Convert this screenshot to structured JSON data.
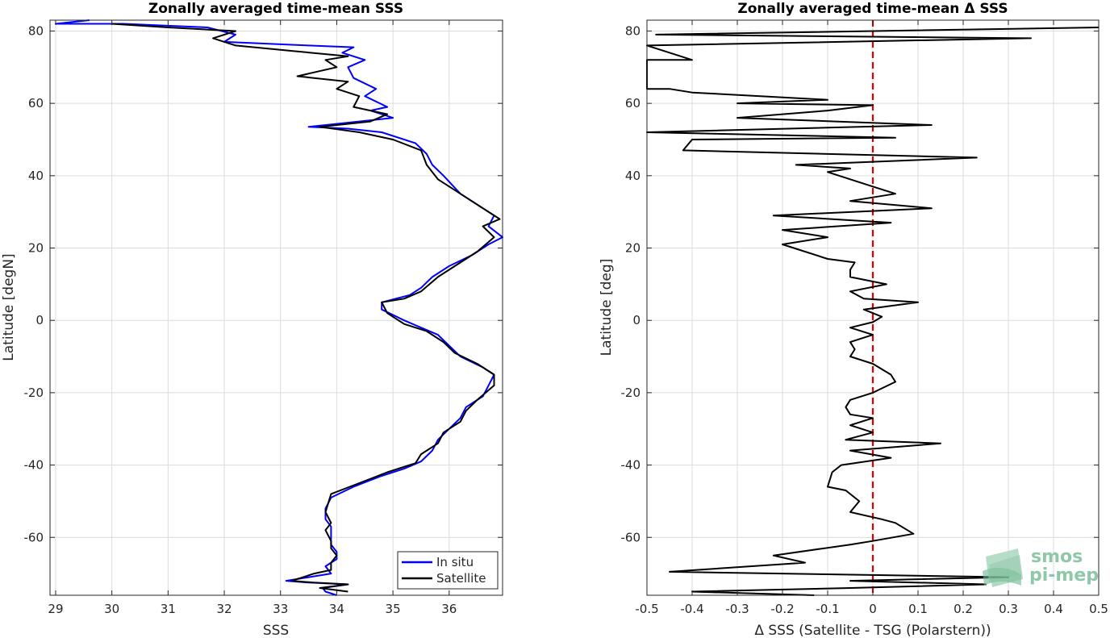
{
  "chart_data": [
    {
      "type": "line",
      "title": "Zonally averaged time-mean SSS",
      "xlabel": "SSS",
      "ylabel": "Latitude [degN]",
      "xlim": [
        28.9,
        36.95
      ],
      "ylim": [
        -76,
        83
      ],
      "xticks": [
        29,
        30,
        31,
        32,
        33,
        34,
        35,
        36
      ],
      "yticks": [
        -60,
        -40,
        -20,
        0,
        20,
        40,
        60,
        80
      ],
      "grid": true,
      "legend": {
        "position": "bottom-right",
        "entries": [
          "In situ",
          "Satellite"
        ]
      },
      "series": [
        {
          "name": "In situ",
          "color": "#0000ff",
          "points": [
            [
              34.0,
              -76
            ],
            [
              33.8,
              -75
            ],
            [
              33.75,
              -74
            ],
            [
              34.2,
              -73
            ],
            [
              33.5,
              -72.5
            ],
            [
              33.1,
              -72
            ],
            [
              33.5,
              -71
            ],
            [
              33.9,
              -70
            ],
            [
              33.8,
              -68
            ],
            [
              33.9,
              -67
            ],
            [
              34.0,
              -66
            ],
            [
              34.0,
              -64
            ],
            [
              33.9,
              -62
            ],
            [
              33.9,
              -60
            ],
            [
              33.9,
              -57
            ],
            [
              33.8,
              -55
            ],
            [
              33.8,
              -52
            ],
            [
              33.9,
              -49
            ],
            [
              34.3,
              -46
            ],
            [
              34.8,
              -43
            ],
            [
              35.2,
              -41
            ],
            [
              35.5,
              -39
            ],
            [
              35.7,
              -36
            ],
            [
              35.8,
              -33
            ],
            [
              36.0,
              -30
            ],
            [
              36.2,
              -27
            ],
            [
              36.3,
              -24
            ],
            [
              36.6,
              -21
            ],
            [
              36.7,
              -18
            ],
            [
              36.8,
              -15
            ],
            [
              36.6,
              -13
            ],
            [
              36.2,
              -10
            ],
            [
              36.0,
              -7
            ],
            [
              35.8,
              -4
            ],
            [
              35.5,
              -2
            ],
            [
              35.2,
              0
            ],
            [
              34.8,
              3
            ],
            [
              34.8,
              5
            ],
            [
              35.3,
              7
            ],
            [
              35.5,
              9
            ],
            [
              35.7,
              12
            ],
            [
              36.0,
              15
            ],
            [
              36.4,
              18
            ],
            [
              36.7,
              21
            ],
            [
              36.95,
              23
            ],
            [
              36.7,
              26
            ],
            [
              36.8,
              29
            ],
            [
              36.6,
              31
            ],
            [
              36.2,
              35
            ],
            [
              35.9,
              40
            ],
            [
              35.7,
              43
            ],
            [
              35.6,
              46
            ],
            [
              35.4,
              49
            ],
            [
              34.8,
              52
            ],
            [
              34.2,
              53
            ],
            [
              33.5,
              53.5
            ],
            [
              34.4,
              55
            ],
            [
              35.0,
              56
            ],
            [
              34.6,
              58
            ],
            [
              34.9,
              59
            ],
            [
              34.5,
              62
            ],
            [
              34.7,
              64
            ],
            [
              34.3,
              67
            ],
            [
              34.2,
              70
            ],
            [
              34.5,
              72
            ],
            [
              34.1,
              74
            ],
            [
              34.3,
              75.5
            ],
            [
              33.5,
              76
            ],
            [
              32.0,
              77
            ],
            [
              32.2,
              79
            ],
            [
              31.7,
              81
            ],
            [
              30.2,
              82
            ],
            [
              29.0,
              82
            ],
            [
              29.6,
              83
            ]
          ]
        },
        {
          "name": "Satellite",
          "color": "#000000",
          "points": [
            [
              34.2,
              -75
            ],
            [
              33.7,
              -74
            ],
            [
              34.2,
              -73
            ],
            [
              33.6,
              -72.5
            ],
            [
              33.2,
              -72
            ],
            [
              33.6,
              -70
            ],
            [
              33.9,
              -69
            ],
            [
              33.9,
              -67
            ],
            [
              34.0,
              -65
            ],
            [
              33.9,
              -63
            ],
            [
              33.9,
              -61
            ],
            [
              33.8,
              -58
            ],
            [
              33.9,
              -56
            ],
            [
              33.8,
              -53
            ],
            [
              33.9,
              -48
            ],
            [
              34.4,
              -45
            ],
            [
              34.9,
              -42
            ],
            [
              35.4,
              -39.5
            ],
            [
              35.5,
              -37
            ],
            [
              35.8,
              -34
            ],
            [
              35.9,
              -31
            ],
            [
              36.2,
              -28
            ],
            [
              36.3,
              -25
            ],
            [
              36.5,
              -22
            ],
            [
              36.8,
              -18
            ],
            [
              36.8,
              -15
            ],
            [
              36.5,
              -12
            ],
            [
              36.1,
              -9
            ],
            [
              35.9,
              -6
            ],
            [
              35.6,
              -3
            ],
            [
              35.2,
              -1
            ],
            [
              34.9,
              2
            ],
            [
              34.8,
              5
            ],
            [
              35.2,
              6
            ],
            [
              35.5,
              8
            ],
            [
              35.8,
              12
            ],
            [
              36.1,
              15
            ],
            [
              36.5,
              19
            ],
            [
              36.8,
              23
            ],
            [
              36.6,
              26
            ],
            [
              36.9,
              28
            ],
            [
              36.5,
              32
            ],
            [
              36.2,
              35
            ],
            [
              35.8,
              39
            ],
            [
              35.6,
              43
            ],
            [
              35.5,
              47
            ],
            [
              35.0,
              50
            ],
            [
              34.4,
              52
            ],
            [
              33.7,
              53.5
            ],
            [
              34.6,
              55
            ],
            [
              34.9,
              57
            ],
            [
              34.3,
              59
            ],
            [
              34.4,
              62
            ],
            [
              34.0,
              64
            ],
            [
              34.2,
              66
            ],
            [
              33.3,
              67.5
            ],
            [
              34.0,
              70
            ],
            [
              33.8,
              72
            ],
            [
              34.2,
              73
            ],
            [
              33.2,
              74.5
            ],
            [
              32.2,
              76
            ],
            [
              31.8,
              78
            ],
            [
              32.2,
              80
            ],
            [
              31.0,
              81
            ],
            [
              30.0,
              82
            ]
          ]
        }
      ]
    },
    {
      "type": "line",
      "title": "Zonally averaged time-mean Δ SSS",
      "xlabel": "Δ SSS (Satellite - TSG (Polarstern))",
      "ylabel": "Latitude [deg]",
      "xlim": [
        -0.5,
        0.5
      ],
      "ylim": [
        -76,
        83
      ],
      "xticks": [
        -0.5,
        -0.4,
        -0.3,
        -0.2,
        -0.1,
        0,
        0.1,
        0.2,
        0.3,
        0.4,
        0.5
      ],
      "yticks": [
        -60,
        -40,
        -20,
        0,
        20,
        40,
        60,
        80
      ],
      "grid": true,
      "reference_line": {
        "x": 0,
        "color": "#e00000",
        "style": "dashed"
      },
      "series": [
        {
          "name": "",
          "color": "#000000",
          "points": [
            [
              -0.13,
              -76
            ],
            [
              -0.4,
              -75
            ],
            [
              -0.05,
              -74
            ],
            [
              0.25,
              -73
            ],
            [
              -0.05,
              -72
            ],
            [
              0.3,
              -71
            ],
            [
              -0.45,
              -69.5
            ],
            [
              -0.15,
              -67
            ],
            [
              -0.22,
              -65
            ],
            [
              -0.05,
              -62
            ],
            [
              0.0,
              -61
            ],
            [
              0.09,
              -59
            ],
            [
              0.05,
              -56
            ],
            [
              0.02,
              -55
            ],
            [
              -0.05,
              -53
            ],
            [
              -0.03,
              -50
            ],
            [
              -0.06,
              -47
            ],
            [
              -0.1,
              -46
            ],
            [
              -0.09,
              -42
            ],
            [
              -0.07,
              -40
            ],
            [
              0.04,
              -38
            ],
            [
              -0.05,
              -36
            ],
            [
              0.15,
              -34
            ],
            [
              -0.06,
              -33
            ],
            [
              0.0,
              -31
            ],
            [
              -0.05,
              -29
            ],
            [
              0.0,
              -27
            ],
            [
              -0.05,
              -26
            ],
            [
              -0.06,
              -24
            ],
            [
              -0.05,
              -22
            ],
            [
              0.0,
              -20
            ],
            [
              0.05,
              -17
            ],
            [
              0.04,
              -15
            ],
            [
              0.0,
              -12
            ],
            [
              -0.05,
              -10
            ],
            [
              -0.04,
              -8
            ],
            [
              -0.05,
              -6
            ],
            [
              0.0,
              -4
            ],
            [
              -0.05,
              -2
            ],
            [
              0.0,
              -0.5
            ],
            [
              0.02,
              1
            ],
            [
              -0.02,
              3
            ],
            [
              0.1,
              5
            ],
            [
              -0.02,
              6
            ],
            [
              -0.05,
              8
            ],
            [
              0.03,
              10
            ],
            [
              -0.05,
              12
            ],
            [
              -0.05,
              14
            ],
            [
              -0.04,
              16
            ],
            [
              -0.1,
              17
            ],
            [
              -0.2,
              21
            ],
            [
              -0.1,
              23
            ],
            [
              -0.2,
              25
            ],
            [
              0.04,
              27
            ],
            [
              -0.22,
              29
            ],
            [
              0.13,
              31
            ],
            [
              -0.05,
              33
            ],
            [
              0.05,
              35
            ],
            [
              0.0,
              37
            ],
            [
              -0.05,
              39
            ],
            [
              -0.1,
              41
            ],
            [
              -0.05,
              42
            ],
            [
              -0.17,
              43
            ],
            [
              0.23,
              45
            ],
            [
              -0.42,
              47
            ],
            [
              -0.4,
              50
            ],
            [
              0.05,
              50.5
            ],
            [
              -0.5,
              52
            ],
            [
              0.13,
              54
            ],
            [
              -0.3,
              56
            ],
            [
              -0.1,
              58
            ],
            [
              0.0,
              59.5
            ],
            [
              -0.3,
              60
            ],
            [
              -0.1,
              61
            ],
            [
              -0.4,
              63
            ],
            [
              -0.45,
              64
            ],
            [
              -0.5,
              64
            ],
            [
              -0.5,
              72
            ],
            [
              -0.4,
              72
            ],
            [
              -0.5,
              76
            ],
            [
              0.35,
              78
            ],
            [
              -0.48,
              79
            ],
            [
              0.5,
              81
            ]
          ]
        }
      ]
    }
  ],
  "logo": {
    "line1": "smos",
    "line2": "pi-mep",
    "color": "#8fc8a8"
  }
}
